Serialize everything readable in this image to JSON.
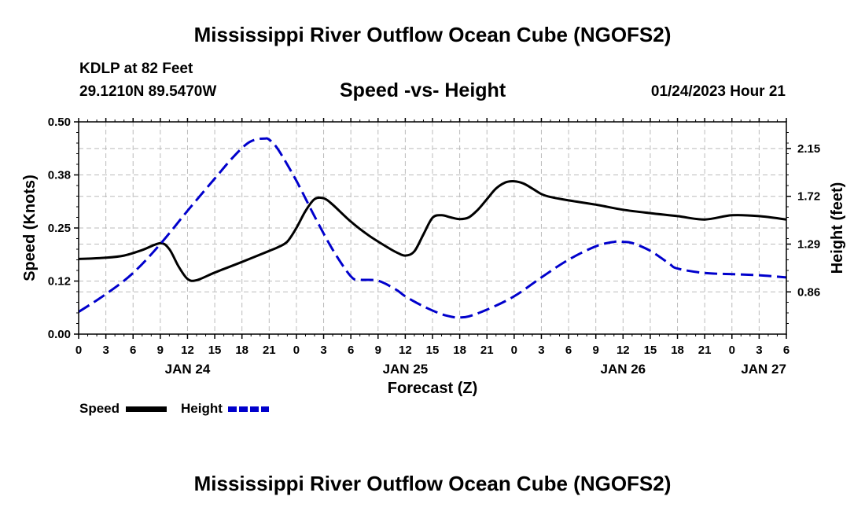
{
  "header": {
    "title": "Mississippi River Outflow Ocean Cube (NGOFS2)",
    "station": "KDLP at 82 Feet",
    "coords": "29.1210N  89.5470W",
    "subtitle": "Speed -vs- Height",
    "timestamp": "01/24/2023 Hour 21"
  },
  "footer": {
    "title": "Mississippi River Outflow Ocean Cube (NGOFS2)"
  },
  "legend": {
    "speed_label": "Speed",
    "height_label": "Height"
  },
  "colors": {
    "speed": "#000000",
    "height": "#0000cc",
    "grid": "#bbbbbb"
  },
  "chart_data": {
    "type": "line",
    "xlabel": "Forecast (Z)",
    "ylabel_left": "Speed (Knots)",
    "ylabel_right": "Height (feet)",
    "x_unit": "hours since 01/24/2023 00Z",
    "xlim": [
      0,
      78
    ],
    "ylim_left": [
      0,
      0.5
    ],
    "ylim_right": [
      0.48,
      2.39
    ],
    "x_ticks": [
      {
        "x": 0,
        "label": "0"
      },
      {
        "x": 3,
        "label": "3"
      },
      {
        "x": 6,
        "label": "6"
      },
      {
        "x": 9,
        "label": "9"
      },
      {
        "x": 12,
        "label": "12"
      },
      {
        "x": 15,
        "label": "15"
      },
      {
        "x": 18,
        "label": "18"
      },
      {
        "x": 21,
        "label": "21"
      },
      {
        "x": 24,
        "label": "0"
      },
      {
        "x": 27,
        "label": "3"
      },
      {
        "x": 30,
        "label": "6"
      },
      {
        "x": 33,
        "label": "9"
      },
      {
        "x": 36,
        "label": "12"
      },
      {
        "x": 39,
        "label": "15"
      },
      {
        "x": 42,
        "label": "18"
      },
      {
        "x": 45,
        "label": "21"
      },
      {
        "x": 48,
        "label": "0"
      },
      {
        "x": 51,
        "label": "3"
      },
      {
        "x": 54,
        "label": "6"
      },
      {
        "x": 57,
        "label": "9"
      },
      {
        "x": 60,
        "label": "12"
      },
      {
        "x": 63,
        "label": "15"
      },
      {
        "x": 66,
        "label": "18"
      },
      {
        "x": 69,
        "label": "21"
      },
      {
        "x": 72,
        "label": "0"
      },
      {
        "x": 75,
        "label": "3"
      },
      {
        "x": 78,
        "label": "6"
      }
    ],
    "date_labels": [
      {
        "x": 12,
        "label": "JAN 24"
      },
      {
        "x": 36,
        "label": "JAN 25"
      },
      {
        "x": 60,
        "label": "JAN 26"
      },
      {
        "x": 75.5,
        "label": "JAN 27"
      }
    ],
    "y_ticks_left": [
      {
        "y": 0.0,
        "label": "0.00"
      },
      {
        "y": 0.125,
        "label": "0.12"
      },
      {
        "y": 0.25,
        "label": "0.25"
      },
      {
        "y": 0.375,
        "label": "0.38"
      },
      {
        "y": 0.5,
        "label": "0.50"
      }
    ],
    "y_ticks_right": [
      {
        "y": 0.86,
        "label": "0.86"
      },
      {
        "y": 1.29,
        "label": "1.29"
      },
      {
        "y": 1.72,
        "label": "1.72"
      },
      {
        "y": 2.15,
        "label": "2.15"
      }
    ],
    "series": [
      {
        "name": "Speed",
        "axis": "left",
        "style": "solid",
        "x": [
          0,
          3,
          5,
          7,
          9,
          10,
          11,
          12,
          13,
          15,
          18,
          21,
          22,
          23,
          24,
          25,
          26,
          27,
          28,
          30,
          32,
          34,
          35,
          36,
          37,
          38,
          39,
          40,
          41,
          42,
          43,
          44,
          45,
          46,
          47,
          48,
          49,
          50,
          51,
          52,
          54,
          57,
          60,
          63,
          66,
          69,
          72,
          75,
          78
        ],
        "values": [
          0.177,
          0.18,
          0.185,
          0.198,
          0.214,
          0.2,
          0.16,
          0.13,
          0.127,
          0.145,
          0.17,
          0.196,
          0.205,
          0.218,
          0.25,
          0.29,
          0.318,
          0.32,
          0.305,
          0.265,
          0.232,
          0.205,
          0.193,
          0.185,
          0.195,
          0.235,
          0.274,
          0.28,
          0.275,
          0.271,
          0.275,
          0.293,
          0.318,
          0.343,
          0.357,
          0.36,
          0.355,
          0.343,
          0.33,
          0.323,
          0.315,
          0.305,
          0.293,
          0.285,
          0.278,
          0.27,
          0.28,
          0.278,
          0.27
        ]
      },
      {
        "name": "Height",
        "axis": "right",
        "style": "dashed",
        "x": [
          0,
          3,
          6,
          9,
          12,
          15,
          17,
          18.5,
          19.5,
          20.5,
          21,
          22,
          24,
          26,
          28,
          30,
          31,
          33,
          35,
          36,
          38,
          40,
          41.5,
          42,
          43,
          45,
          48,
          51,
          54,
          57,
          59,
          60,
          61,
          63,
          65,
          66,
          69,
          72,
          75,
          78
        ],
        "values": [
          0.68,
          0.84,
          1.03,
          1.29,
          1.59,
          1.88,
          2.07,
          2.19,
          2.23,
          2.24,
          2.23,
          2.14,
          1.86,
          1.54,
          1.24,
          1.0,
          0.97,
          0.96,
          0.88,
          0.82,
          0.73,
          0.66,
          0.63,
          0.63,
          0.64,
          0.7,
          0.82,
          0.99,
          1.15,
          1.27,
          1.31,
          1.31,
          1.3,
          1.23,
          1.12,
          1.07,
          1.03,
          1.02,
          1.01,
          0.99
        ]
      }
    ]
  }
}
